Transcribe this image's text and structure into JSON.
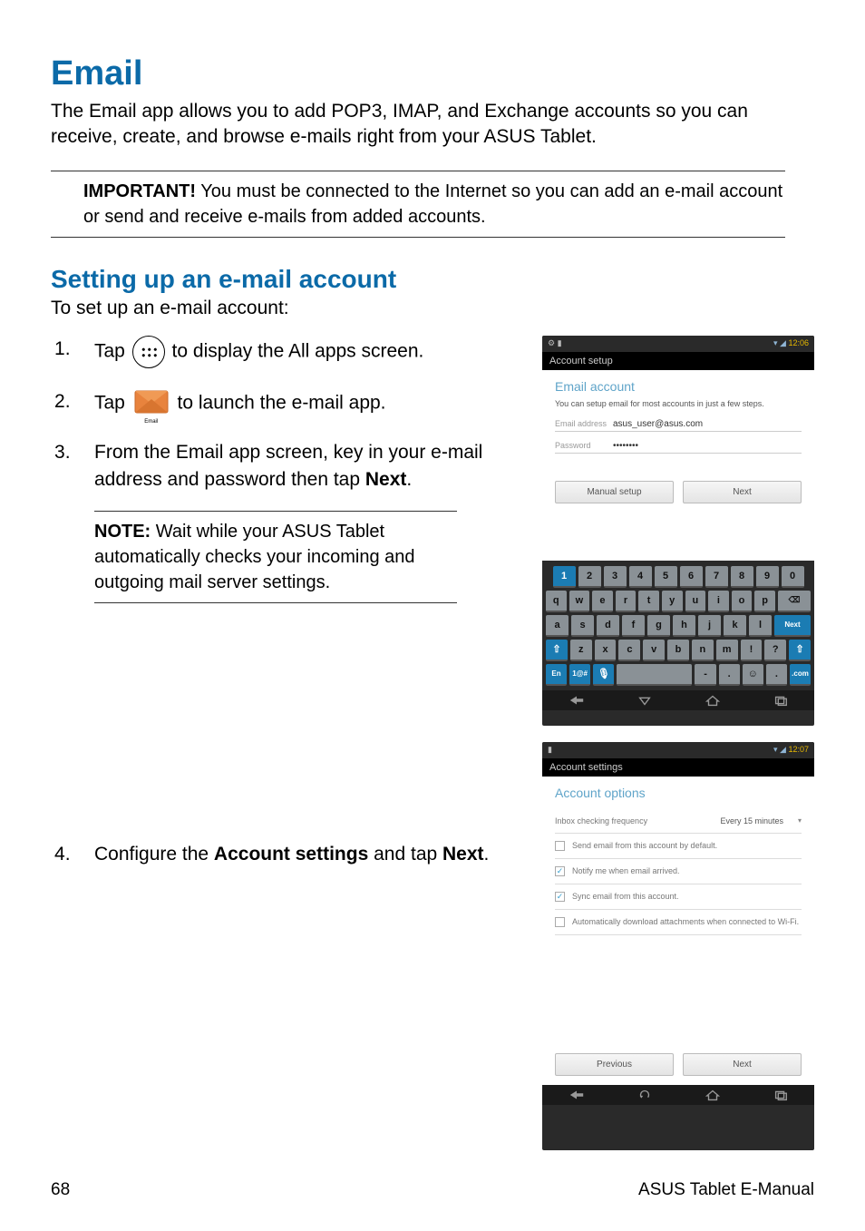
{
  "page": {
    "number": "68",
    "footer_right": "ASUS Tablet E-Manual"
  },
  "heading": "Email",
  "intro": "The Email app allows you to add POP3, IMAP, and Exchange accounts so you can receive, create, and browse e-mails right from your ASUS Tablet.",
  "important": {
    "label": "IMPORTANT!",
    "text": " You must be connected to the Internet so you can add an e-mail account or send and receive e-mails from added accounts."
  },
  "subheading": "Setting up an e-mail account",
  "subintro": "To set up an e-mail account:",
  "steps": {
    "s1a": "Tap ",
    "s1b": " to display the All apps screen.",
    "s2a": "Tap ",
    "s2b": " to launch the e-mail app.",
    "s3a": "From the Email app screen, key in your e-mail address and password then tap ",
    "s3b": "Next",
    "s3c": ".",
    "s4a": "Configure the ",
    "s4b": "Account settings",
    "s4c": " and tap ",
    "s4d": "Next",
    "s4e": "."
  },
  "note": {
    "label": "NOTE:",
    "text": " Wait while your ASUS Tablet automatically checks your incoming and outgoing mail server settings."
  },
  "email_icon_label": "Email",
  "shot1": {
    "time": "12:06",
    "appbar": "Account setup",
    "title": "Email account",
    "subt": "You can setup email for most accounts in just a few steps.",
    "email_label": "Email address",
    "email_value": "asus_user@asus.com",
    "pw_label": "Password",
    "pw_value": "••••••••",
    "btn_manual": "Manual setup",
    "btn_next": "Next",
    "keys_r1": [
      "1",
      "2",
      "3",
      "4",
      "5",
      "6",
      "7",
      "8",
      "9",
      "0"
    ],
    "keys_r2": [
      "q",
      "w",
      "e",
      "r",
      "t",
      "y",
      "u",
      "i",
      "o",
      "p"
    ],
    "keys_r3": [
      "a",
      "s",
      "d",
      "f",
      "g",
      "h",
      "j",
      "k",
      "l"
    ],
    "keys_r4": [
      "z",
      "x",
      "c",
      "v",
      "b",
      "n",
      "m",
      "!",
      "?"
    ],
    "key_next": "Next",
    "key_bksp": "⌫",
    "key_shift": "⇧",
    "key_en": "En",
    "key_sym": "1@#",
    "key_mic": "🎤",
    "key_com": ".com",
    "key_smile": "☺",
    "key_dash": "-",
    "key_dot": "."
  },
  "shot2": {
    "time": "12:07",
    "appbar": "Account settings",
    "title": "Account options",
    "freq_label": "Inbox checking frequency",
    "freq_value": "Every 15 minutes",
    "opt1": "Send email from this account by default.",
    "opt2": "Notify me when email arrived.",
    "opt3": "Sync email from this account.",
    "opt4": "Automatically download attachments when connected to Wi-Fi.",
    "btn_prev": "Previous",
    "btn_next": "Next"
  }
}
